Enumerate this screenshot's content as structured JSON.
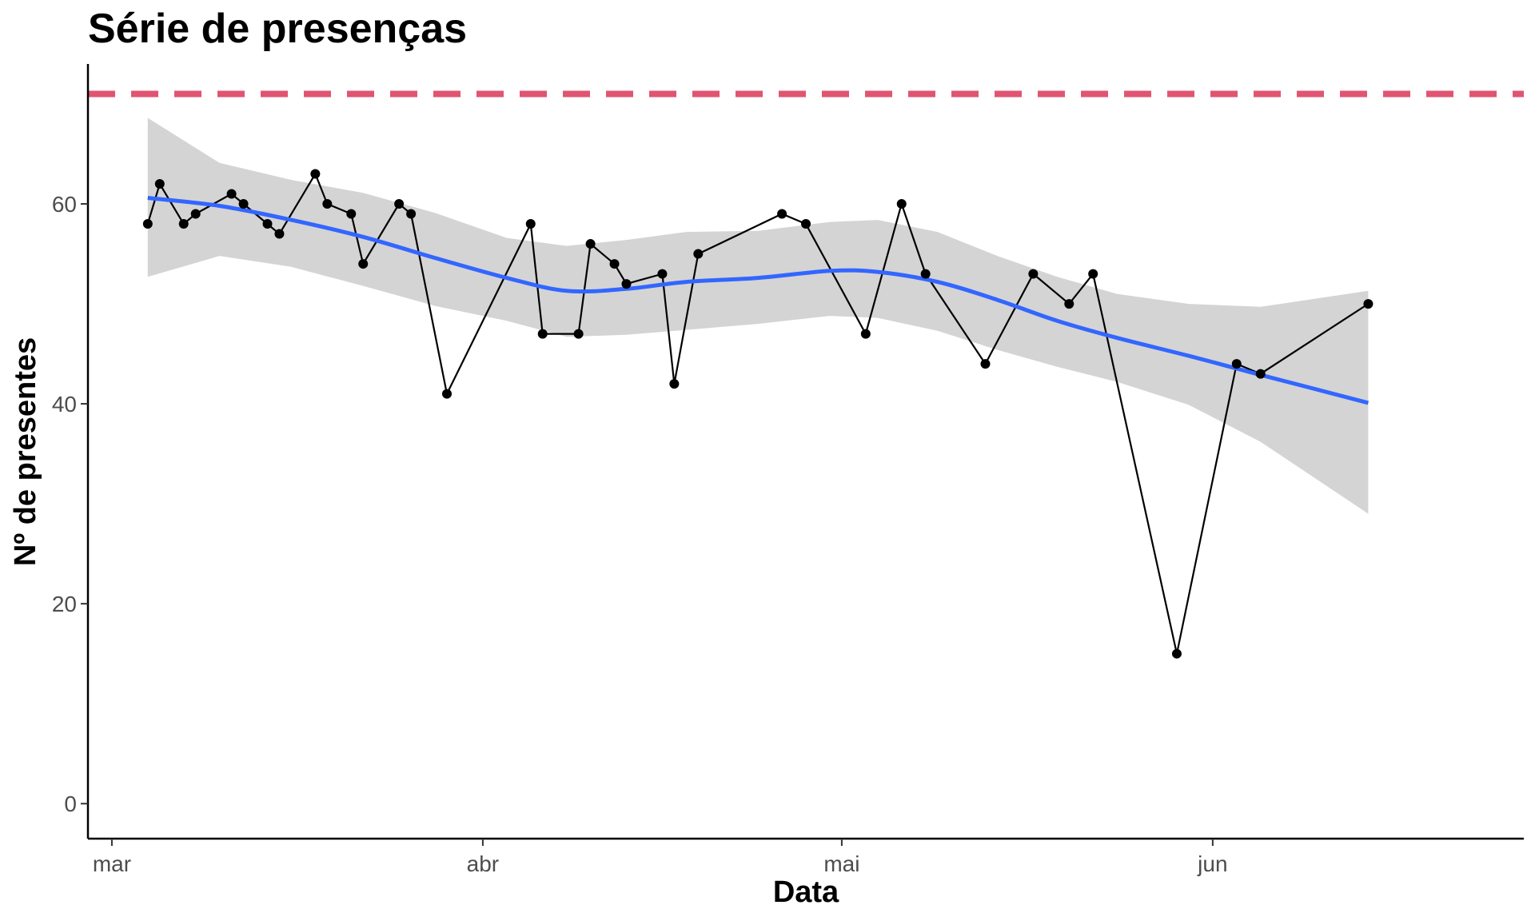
{
  "chart_data": {
    "type": "line",
    "title": "Série de presenças",
    "xlabel": "Data",
    "ylabel": "Nº de presentes",
    "xlim": [
      "2023-02-27",
      "2023-06-27"
    ],
    "ylim": [
      -3.5,
      74
    ],
    "x_ticks": [
      {
        "date": "2023-03-01",
        "label": "mar"
      },
      {
        "date": "2023-04-01",
        "label": "abr"
      },
      {
        "date": "2023-05-01",
        "label": "mai"
      },
      {
        "date": "2023-06-01",
        "label": "jun"
      }
    ],
    "y_ticks": [
      0,
      20,
      40,
      60
    ],
    "grid": false,
    "reference_line": {
      "y": 71,
      "color": "#e05571",
      "style": "dashed"
    },
    "series": [
      {
        "type": "line+points",
        "color": "#000000",
        "points": [
          {
            "x": "2023-03-04",
            "y": 58
          },
          {
            "x": "2023-03-05",
            "y": 62
          },
          {
            "x": "2023-03-07",
            "y": 58
          },
          {
            "x": "2023-03-08",
            "y": 59
          },
          {
            "x": "2023-03-11",
            "y": 61
          },
          {
            "x": "2023-03-12",
            "y": 60
          },
          {
            "x": "2023-03-14",
            "y": 58
          },
          {
            "x": "2023-03-15",
            "y": 57
          },
          {
            "x": "2023-03-18",
            "y": 63
          },
          {
            "x": "2023-03-19",
            "y": 60
          },
          {
            "x": "2023-03-21",
            "y": 59
          },
          {
            "x": "2023-03-22",
            "y": 54
          },
          {
            "x": "2023-03-25",
            "y": 60
          },
          {
            "x": "2023-03-26",
            "y": 59
          },
          {
            "x": "2023-03-29",
            "y": 41
          },
          {
            "x": "2023-04-05",
            "y": 58
          },
          {
            "x": "2023-04-06",
            "y": 47
          },
          {
            "x": "2023-04-09",
            "y": 47
          },
          {
            "x": "2023-04-10",
            "y": 56
          },
          {
            "x": "2023-04-12",
            "y": 54
          },
          {
            "x": "2023-04-13",
            "y": 52
          },
          {
            "x": "2023-04-16",
            "y": 53
          },
          {
            "x": "2023-04-17",
            "y": 42
          },
          {
            "x": "2023-04-19",
            "y": 55
          },
          {
            "x": "2023-04-26",
            "y": 59
          },
          {
            "x": "2023-04-28",
            "y": 58
          },
          {
            "x": "2023-05-03",
            "y": 47
          },
          {
            "x": "2023-05-06",
            "y": 60
          },
          {
            "x": "2023-05-08",
            "y": 53
          },
          {
            "x": "2023-05-13",
            "y": 44
          },
          {
            "x": "2023-05-17",
            "y": 53
          },
          {
            "x": "2023-05-20",
            "y": 50
          },
          {
            "x": "2023-05-22",
            "y": 53
          },
          {
            "x": "2023-05-29",
            "y": 15
          },
          {
            "x": "2023-06-03",
            "y": 44
          },
          {
            "x": "2023-06-05",
            "y": 43
          },
          {
            "x": "2023-06-14",
            "y": 50
          }
        ]
      },
      {
        "type": "smooth",
        "color": "#3366ff",
        "points": [
          {
            "x": "2023-03-04",
            "y": 60.6
          },
          {
            "x": "2023-03-10",
            "y": 59.8
          },
          {
            "x": "2023-03-16",
            "y": 58.4
          },
          {
            "x": "2023-03-22",
            "y": 56.7
          },
          {
            "x": "2023-03-28",
            "y": 54.6
          },
          {
            "x": "2023-04-03",
            "y": 52.6
          },
          {
            "x": "2023-04-08",
            "y": 51.3
          },
          {
            "x": "2023-04-13",
            "y": 51.5
          },
          {
            "x": "2023-04-18",
            "y": 52.2
          },
          {
            "x": "2023-04-24",
            "y": 52.6
          },
          {
            "x": "2023-04-30",
            "y": 53.3
          },
          {
            "x": "2023-05-04",
            "y": 53.2
          },
          {
            "x": "2023-05-09",
            "y": 52.2
          },
          {
            "x": "2023-05-14",
            "y": 50.4
          },
          {
            "x": "2023-05-19",
            "y": 48.3
          },
          {
            "x": "2023-05-24",
            "y": 46.6
          },
          {
            "x": "2023-05-30",
            "y": 44.8
          },
          {
            "x": "2023-06-05",
            "y": 42.9
          },
          {
            "x": "2023-06-14",
            "y": 40.1
          }
        ]
      }
    ],
    "confidence_band": {
      "color": "#d4d4d4",
      "x": [
        "2023-03-04",
        "2023-03-10",
        "2023-03-16",
        "2023-03-22",
        "2023-03-28",
        "2023-04-03",
        "2023-04-08",
        "2023-04-13",
        "2023-04-18",
        "2023-04-24",
        "2023-04-30",
        "2023-05-04",
        "2023-05-09",
        "2023-05-14",
        "2023-05-19",
        "2023-05-24",
        "2023-05-30",
        "2023-06-05",
        "2023-06-14"
      ],
      "upper": [
        68.6,
        64.1,
        62.4,
        61.1,
        59.1,
        56.6,
        55.8,
        56.4,
        57.2,
        57.3,
        58.2,
        58.4,
        57.2,
        54.8,
        52.7,
        51.0,
        50.0,
        49.7,
        51.3
      ],
      "lower": [
        52.7,
        54.8,
        53.7,
        51.8,
        49.8,
        48.3,
        46.7,
        46.9,
        47.4,
        48.0,
        48.8,
        48.6,
        47.3,
        45.4,
        43.7,
        42.2,
        39.9,
        36.2,
        29.0
      ]
    }
  }
}
